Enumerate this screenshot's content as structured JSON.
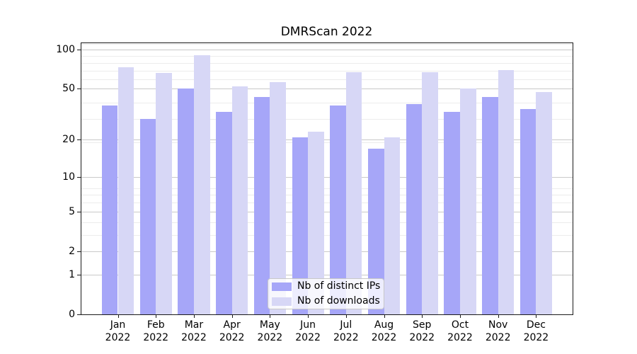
{
  "title": "DMRScan 2022",
  "legend": {
    "items": [
      {
        "label": "Nb of distinct IPs",
        "color": "#a6a6f8"
      },
      {
        "label": "Nb of downloads",
        "color": "#d7d7f6"
      }
    ]
  },
  "chart_data": {
    "type": "bar",
    "title": "DMRScan 2022",
    "categories": [
      "Jan 2022",
      "Feb 2022",
      "Mar 2022",
      "Apr 2022",
      "May 2022",
      "Jun 2022",
      "Jul 2022",
      "Aug 2022",
      "Sep 2022",
      "Oct 2022",
      "Nov 2022",
      "Dec 2022"
    ],
    "series": [
      {
        "name": "Nb of distinct IPs",
        "color": "#a6a6f8",
        "values": [
          37,
          29,
          50,
          33,
          43,
          21,
          37,
          17,
          38,
          33,
          43,
          35
        ]
      },
      {
        "name": "Nb of downloads",
        "color": "#d7d7f6",
        "values": [
          73,
          66,
          90,
          52,
          56,
          23,
          67,
          21,
          67,
          50,
          70,
          47
        ]
      }
    ],
    "xlabel": "",
    "ylabel": "",
    "yscale": "log10(value+1)",
    "ylim": [
      0,
      113
    ],
    "y_major_ticks": [
      100,
      50,
      20,
      10,
      5,
      2,
      1,
      0
    ],
    "y_minor_gridline_values": [
      110,
      89,
      79,
      69,
      59,
      39,
      29,
      19,
      8,
      7,
      6,
      5,
      4,
      3,
      2,
      1
    ],
    "grid": true,
    "legend_position": "lower center"
  },
  "colors": {
    "major_grid": "#c9c9c9",
    "minor_grid": "#ececec",
    "spine": "#1a1a1a",
    "text": "#000000"
  }
}
